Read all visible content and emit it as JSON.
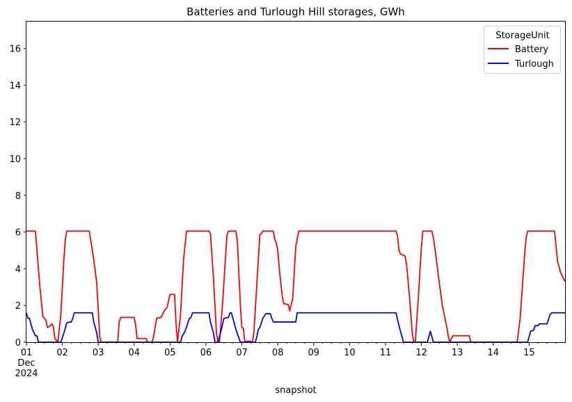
{
  "chart_data": {
    "type": "line",
    "title": "Batteries and Turlough Hill storages, GWh",
    "xlabel": "snapshot",
    "ylabel": "",
    "x_start": "2024-12-01",
    "x_end": "2024-12-16",
    "ylim": [
      0,
      17.5
    ],
    "y_ticks": [
      0,
      2,
      4,
      6,
      8,
      10,
      12,
      14,
      16
    ],
    "x_ticks": [
      {
        "day": "01",
        "month": "Dec",
        "year": "2024"
      },
      {
        "day": "02"
      },
      {
        "day": "03"
      },
      {
        "day": "04"
      },
      {
        "day": "05"
      },
      {
        "day": "06"
      },
      {
        "day": "07"
      },
      {
        "day": "08"
      },
      {
        "day": "09"
      },
      {
        "day": "10"
      },
      {
        "day": "11"
      },
      {
        "day": "12"
      },
      {
        "day": "13"
      },
      {
        "day": "14"
      },
      {
        "day": "15"
      }
    ],
    "grid": false,
    "legend": {
      "title": "StorageUnit",
      "placement": "top-right"
    },
    "series": [
      {
        "name": "Battery",
        "color": "#ff0000",
        "points": [
          [
            "2024-12-01 00:00",
            6.05
          ],
          [
            "2024-12-01 06:00",
            6.05
          ],
          [
            "2024-12-01 09:00",
            3.0
          ],
          [
            "2024-12-01 11:00",
            1.4
          ],
          [
            "2024-12-01 13:00",
            1.2
          ],
          [
            "2024-12-01 14:00",
            0.8
          ],
          [
            "2024-12-01 16:00",
            0.9
          ],
          [
            "2024-12-01 17:00",
            1.0
          ],
          [
            "2024-12-01 18:00",
            0.85
          ],
          [
            "2024-12-01 19:00",
            0.2
          ],
          [
            "2024-12-01 21:00",
            0.0
          ],
          [
            "2024-12-01 23:00",
            1.5
          ],
          [
            "2024-12-02 01:00",
            4.5
          ],
          [
            "2024-12-02 02:00",
            5.6
          ],
          [
            "2024-12-02 03:00",
            6.05
          ],
          [
            "2024-12-02 18:00",
            6.05
          ],
          [
            "2024-12-02 21:00",
            4.5
          ],
          [
            "2024-12-02 23:00",
            3.2
          ],
          [
            "2024-12-03 01:00",
            0.3
          ],
          [
            "2024-12-03 02:00",
            0.0
          ],
          [
            "2024-12-03 13:00",
            0.0
          ],
          [
            "2024-12-03 14:00",
            1.1
          ],
          [
            "2024-12-03 15:00",
            1.35
          ],
          [
            "2024-12-03 23:00",
            1.35
          ],
          [
            "2024-12-04 00:00",
            1.35
          ],
          [
            "2024-12-04 01:00",
            0.9
          ],
          [
            "2024-12-04 02:00",
            0.2
          ],
          [
            "2024-12-04 08:00",
            0.2
          ],
          [
            "2024-12-04 09:00",
            0.0
          ],
          [
            "2024-12-04 12:00",
            0.0
          ],
          [
            "2024-12-04 13:00",
            0.3
          ],
          [
            "2024-12-04 15:00",
            1.3
          ],
          [
            "2024-12-04 18:00",
            1.35
          ],
          [
            "2024-12-04 20:00",
            1.7
          ],
          [
            "2024-12-04 22:00",
            1.9
          ],
          [
            "2024-12-05 00:00",
            2.6
          ],
          [
            "2024-12-05 03:00",
            2.6
          ],
          [
            "2024-12-05 04:00",
            1.0
          ],
          [
            "2024-12-05 05:00",
            0.0
          ],
          [
            "2024-12-05 07:00",
            1.5
          ],
          [
            "2024-12-05 09:00",
            4.5
          ],
          [
            "2024-12-05 11:00",
            6.05
          ],
          [
            "2024-12-06 02:00",
            6.05
          ],
          [
            "2024-12-06 03:00",
            5.9
          ],
          [
            "2024-12-06 05:00",
            3.5
          ],
          [
            "2024-12-06 07:00",
            0.5
          ],
          [
            "2024-12-06 08:00",
            0.0
          ],
          [
            "2024-12-06 09:00",
            0.0
          ],
          [
            "2024-12-06 11:00",
            2.0
          ],
          [
            "2024-12-06 14:00",
            5.8
          ],
          [
            "2024-12-06 15:00",
            6.05
          ],
          [
            "2024-12-06 20:00",
            6.05
          ],
          [
            "2024-12-06 21:00",
            5.5
          ],
          [
            "2024-12-06 23:00",
            2.0
          ],
          [
            "2024-12-07 00:00",
            0.8
          ],
          [
            "2024-12-07 01:00",
            0.75
          ],
          [
            "2024-12-07 02:00",
            0.0
          ],
          [
            "2024-12-07 03:00",
            0.05
          ],
          [
            "2024-12-07 06:00",
            0.05
          ],
          [
            "2024-12-07 07:00",
            0.0
          ],
          [
            "2024-12-07 08:00",
            0.5
          ],
          [
            "2024-12-07 11:00",
            4.5
          ],
          [
            "2024-12-07 12:00",
            5.85
          ],
          [
            "2024-12-07 13:00",
            5.9
          ],
          [
            "2024-12-07 14:00",
            6.05
          ],
          [
            "2024-12-07 21:00",
            6.05
          ],
          [
            "2024-12-07 22:00",
            5.6
          ],
          [
            "2024-12-07 23:00",
            5.4
          ],
          [
            "2024-12-08 00:00",
            5.0
          ],
          [
            "2024-12-08 01:00",
            4.0
          ],
          [
            "2024-12-08 03:00",
            2.5
          ],
          [
            "2024-12-08 04:00",
            2.1
          ],
          [
            "2024-12-08 07:00",
            2.05
          ],
          [
            "2024-12-08 08:00",
            1.7
          ],
          [
            "2024-12-08 10:00",
            2.4
          ],
          [
            "2024-12-08 12:00",
            5.2
          ],
          [
            "2024-12-08 14:00",
            6.05
          ],
          [
            "2024-12-11 07:00",
            6.05
          ],
          [
            "2024-12-11 08:00",
            5.8
          ],
          [
            "2024-12-11 09:00",
            5.0
          ],
          [
            "2024-12-11 10:00",
            4.8
          ],
          [
            "2024-12-11 13:00",
            4.7
          ],
          [
            "2024-12-11 14:00",
            4.3
          ],
          [
            "2024-12-11 16:00",
            2.5
          ],
          [
            "2024-12-11 18:00",
            0.4
          ],
          [
            "2024-12-11 19:00",
            0.0
          ],
          [
            "2024-12-11 20:00",
            0.1
          ],
          [
            "2024-12-11 22:00",
            2.5
          ],
          [
            "2024-12-12 00:00",
            5.2
          ],
          [
            "2024-12-12 01:00",
            6.05
          ],
          [
            "2024-12-12 07:00",
            6.05
          ],
          [
            "2024-12-12 08:00",
            5.7
          ],
          [
            "2024-12-12 10:00",
            4.5
          ],
          [
            "2024-12-12 12:00",
            3.2
          ],
          [
            "2024-12-12 14:00",
            2.0
          ],
          [
            "2024-12-12 17:00",
            0.8
          ],
          [
            "2024-12-12 18:00",
            0.3
          ],
          [
            "2024-12-12 19:00",
            0.0
          ],
          [
            "2024-12-12 20:00",
            0.2
          ],
          [
            "2024-12-12 21:00",
            0.35
          ],
          [
            "2024-12-13 08:00",
            0.35
          ],
          [
            "2024-12-13 09:00",
            0.0
          ],
          [
            "2024-12-14 16:00",
            0.0
          ],
          [
            "2024-12-14 18:00",
            1.3
          ],
          [
            "2024-12-14 21:00",
            4.8
          ],
          [
            "2024-12-14 22:00",
            5.7
          ],
          [
            "2024-12-14 23:00",
            6.05
          ],
          [
            "2024-12-15 17:00",
            6.05
          ],
          [
            "2024-12-15 19:00",
            4.4
          ],
          [
            "2024-12-15 21:00",
            3.8
          ],
          [
            "2024-12-16 00:00",
            3.3
          ]
        ]
      },
      {
        "name": "Turlough",
        "color": "#0000ff",
        "points": [
          [
            "2024-12-01 00:00",
            1.6
          ],
          [
            "2024-12-01 01:00",
            1.3
          ],
          [
            "2024-12-01 02:00",
            1.3
          ],
          [
            "2024-12-01 04:00",
            0.7
          ],
          [
            "2024-12-01 06:00",
            0.35
          ],
          [
            "2024-12-01 07:00",
            0.35
          ],
          [
            "2024-12-01 08:00",
            0.0
          ],
          [
            "2024-12-01 23:00",
            0.0
          ],
          [
            "2024-12-02 01:00",
            0.5
          ],
          [
            "2024-12-02 03:00",
            1.05
          ],
          [
            "2024-12-02 05:00",
            1.1
          ],
          [
            "2024-12-02 06:00",
            1.1
          ],
          [
            "2024-12-02 07:00",
            1.3
          ],
          [
            "2024-12-02 08:00",
            1.6
          ],
          [
            "2024-12-02 20:00",
            1.6
          ],
          [
            "2024-12-02 21:00",
            1.1
          ],
          [
            "2024-12-02 23:00",
            0.5
          ],
          [
            "2024-12-03 00:00",
            0.0
          ],
          [
            "2024-12-05 06:00",
            0.0
          ],
          [
            "2024-12-05 07:00",
            0.0
          ],
          [
            "2024-12-05 08:00",
            0.3
          ],
          [
            "2024-12-05 10:00",
            0.6
          ],
          [
            "2024-12-05 13:00",
            1.3
          ],
          [
            "2024-12-05 14:00",
            1.35
          ],
          [
            "2024-12-05 15:00",
            1.6
          ],
          [
            "2024-12-06 02:00",
            1.6
          ],
          [
            "2024-12-06 03:00",
            1.1
          ],
          [
            "2024-12-06 05:00",
            0.5
          ],
          [
            "2024-12-06 06:00",
            0.0
          ],
          [
            "2024-12-06 08:00",
            0.0
          ],
          [
            "2024-12-06 10:00",
            0.6
          ],
          [
            "2024-12-06 12:00",
            1.3
          ],
          [
            "2024-12-06 15:00",
            1.35
          ],
          [
            "2024-12-06 16:00",
            1.6
          ],
          [
            "2024-12-06 17:00",
            1.6
          ],
          [
            "2024-12-06 18:00",
            1.3
          ],
          [
            "2024-12-06 20:00",
            0.7
          ],
          [
            "2024-12-06 23:00",
            0.0
          ],
          [
            "2024-12-07 09:00",
            0.0
          ],
          [
            "2024-12-07 10:00",
            0.3
          ],
          [
            "2024-12-07 11:00",
            0.7
          ],
          [
            "2024-12-07 12:00",
            0.8
          ],
          [
            "2024-12-07 14:00",
            1.3
          ],
          [
            "2024-12-07 16:00",
            1.55
          ],
          [
            "2024-12-07 19:00",
            1.55
          ],
          [
            "2024-12-07 20:00",
            1.3
          ],
          [
            "2024-12-07 21:00",
            1.1
          ],
          [
            "2024-12-08 12:00",
            1.1
          ],
          [
            "2024-12-08 13:00",
            1.6
          ],
          [
            "2024-12-11 07:00",
            1.6
          ],
          [
            "2024-12-11 09:00",
            0.9
          ],
          [
            "2024-12-11 12:00",
            0.0
          ],
          [
            "2024-12-12 04:00",
            0.0
          ],
          [
            "2024-12-12 06:00",
            0.6
          ],
          [
            "2024-12-12 07:00",
            0.3
          ],
          [
            "2024-12-12 08:00",
            0.0
          ],
          [
            "2024-12-14 23:00",
            0.0
          ],
          [
            "2024-12-15 01:00",
            0.6
          ],
          [
            "2024-12-15 03:00",
            0.65
          ],
          [
            "2024-12-15 04:00",
            0.9
          ],
          [
            "2024-12-15 06:00",
            0.9
          ],
          [
            "2024-12-15 07:00",
            1.0
          ],
          [
            "2024-12-15 12:00",
            1.0
          ],
          [
            "2024-12-15 14:00",
            1.5
          ],
          [
            "2024-12-15 15:00",
            1.6
          ],
          [
            "2024-12-16 00:00",
            1.6
          ]
        ]
      }
    ]
  }
}
